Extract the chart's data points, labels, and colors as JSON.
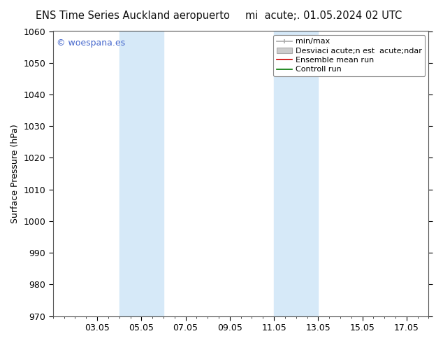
{
  "title_left": "ENS Time Series Auckland aeropuerto",
  "title_right": "mi  acute;. 01.05.2024 02 UTC",
  "ylabel": "Surface Pressure (hPa)",
  "ylim": [
    970,
    1060
  ],
  "yticks": [
    970,
    980,
    990,
    1000,
    1010,
    1020,
    1030,
    1040,
    1050,
    1060
  ],
  "xlim": [
    1.0,
    18.0
  ],
  "xtick_labels": [
    "03.05",
    "05.05",
    "07.05",
    "09.05",
    "11.05",
    "13.05",
    "15.05",
    "17.05"
  ],
  "xtick_positions": [
    3,
    5,
    7,
    9,
    11,
    13,
    15,
    17
  ],
  "shaded_regions": [
    {
      "xmin": 4.0,
      "xmax": 6.0,
      "color": "#d6e9f8"
    },
    {
      "xmin": 11.0,
      "xmax": 13.0,
      "color": "#d6e9f8"
    }
  ],
  "watermark": "© woespana.es",
  "legend_labels": [
    "min/max",
    "Desviaci acute;n est  acute;ndar",
    "Ensemble mean run",
    "Controll run"
  ],
  "legend_colors": [
    "#aaaaaa",
    "#cccccc",
    "#cc0000",
    "#007700"
  ],
  "bg_color": "#ffffff",
  "plot_bg_color": "#ffffff",
  "title_fontsize": 10.5,
  "axis_label_fontsize": 9,
  "tick_fontsize": 9,
  "legend_fontsize": 8,
  "watermark_fontsize": 9,
  "watermark_color": "#4466cc"
}
